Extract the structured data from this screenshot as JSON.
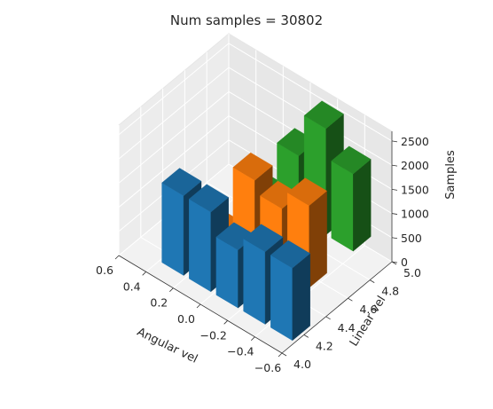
{
  "chart_data": {
    "type": "bar3d",
    "title": "Num samples = 30802",
    "xlabel": "Angular vel",
    "ylabel": "Linear vel",
    "zlabel": "Samples",
    "xticks": [
      "−0.6",
      "−0.4",
      "−0.2",
      "0.0",
      "0.2",
      "0.4",
      "0.6"
    ],
    "yticks": [
      "4.0",
      "4.2",
      "4.4",
      "4.6",
      "4.8",
      "5.0"
    ],
    "zticks": [
      "0",
      "500",
      "1000",
      "1500",
      "2000",
      "2500"
    ],
    "xlim": [
      -0.6,
      0.6
    ],
    "ylim": [
      4.0,
      5.0
    ],
    "zlim": [
      0,
      2700
    ],
    "series": [
      {
        "color": "#1f77b4",
        "bars": [
          {
            "x": -0.5,
            "y": 4.2,
            "z": 1500
          },
          {
            "x": -0.3,
            "y": 4.2,
            "z": 1500
          },
          {
            "x": -0.1,
            "y": 4.2,
            "z": 1200
          },
          {
            "x": 0.1,
            "y": 4.2,
            "z": 1650
          },
          {
            "x": 0.3,
            "y": 4.2,
            "z": 1650
          }
        ]
      },
      {
        "color": "#ff7f0e",
        "bars": [
          {
            "x": -0.3,
            "y": 4.6,
            "z": 1700
          },
          {
            "x": -0.1,
            "y": 4.6,
            "z": 1300
          },
          {
            "x": 0.1,
            "y": 4.6,
            "z": 1550
          },
          {
            "x": 0.3,
            "y": 4.6,
            "z": 10
          }
        ]
      },
      {
        "color": "#2ca02c",
        "bars": [
          {
            "x": -0.3,
            "y": 5.0,
            "z": 1600
          },
          {
            "x": -0.1,
            "y": 5.0,
            "z": 2200
          },
          {
            "x": 0.1,
            "y": 5.0,
            "z": 1300
          },
          {
            "x": 0.3,
            "y": 5.0,
            "z": 10
          }
        ]
      }
    ]
  }
}
